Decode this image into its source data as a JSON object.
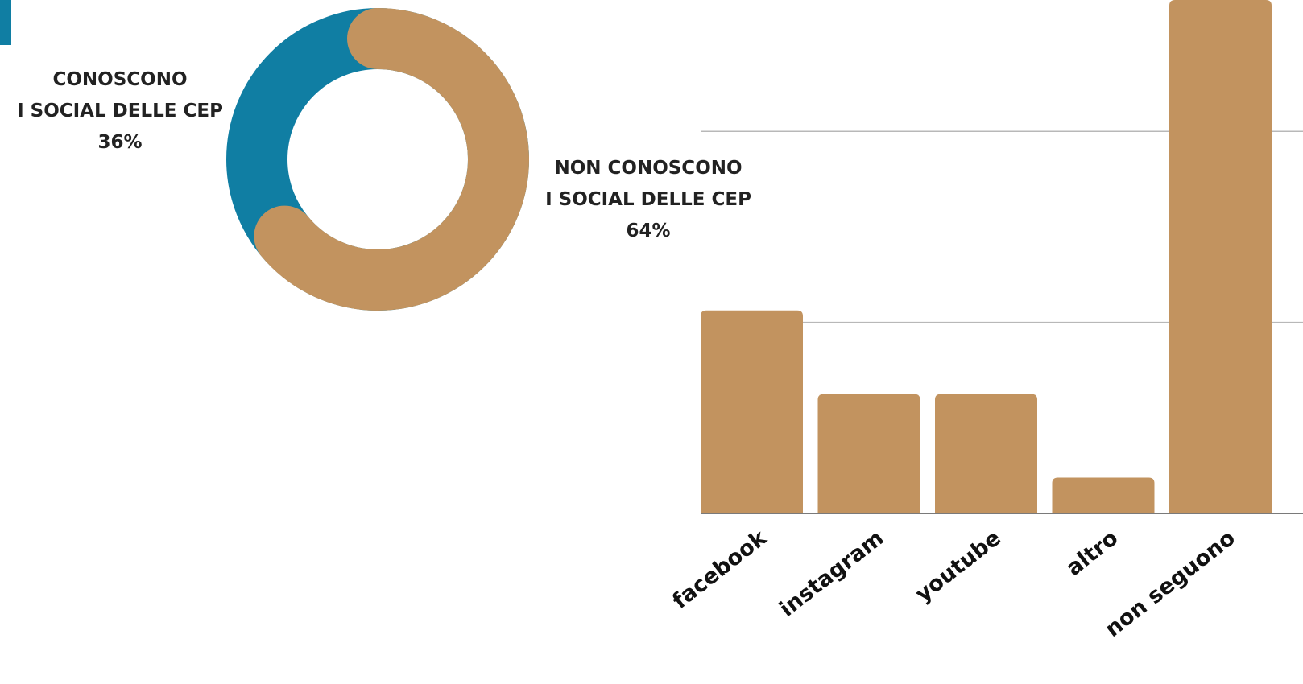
{
  "colors": {
    "accent": "#107ea3",
    "bar": "#c2935f",
    "grid": "#b8b8b8",
    "axis": "#7a7a7a"
  },
  "chart_data": [
    {
      "type": "pie",
      "labels": [
        "CONOSCONO I SOCIAL DELLE CEP",
        "NON CONOSCONO I SOCIAL DELLE CEP"
      ],
      "values": [
        36,
        64
      ],
      "colors": [
        "#107ea3",
        "#c2935f"
      ],
      "label_lines": {
        "known": [
          "CONOSCONO",
          "I SOCIAL DELLE CEP",
          "36%"
        ],
        "unknown": [
          "NON CONOSCONO",
          "I SOCIAL DELLE CEP",
          "64%"
        ]
      }
    },
    {
      "type": "bar",
      "categories": [
        "facebook",
        "instagram",
        "youtube",
        "altro",
        "non seguono"
      ],
      "values": [
        34,
        20,
        20,
        6,
        86
      ],
      "ylim": [
        0,
        86
      ],
      "grid": true,
      "gridlines": [
        32,
        64
      ],
      "color": "#c2935f"
    }
  ]
}
